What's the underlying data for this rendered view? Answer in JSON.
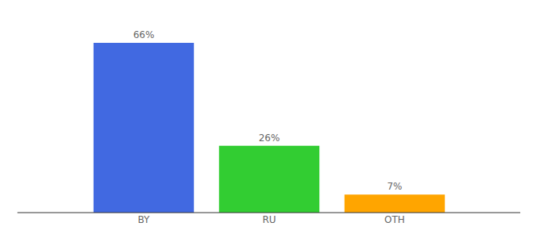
{
  "chart_data": {
    "type": "bar",
    "categories": [
      "BY",
      "RU",
      "OTH"
    ],
    "values": [
      66,
      26,
      7
    ],
    "value_labels": [
      "66%",
      "26%",
      "7%"
    ],
    "colors": [
      "#4169e1",
      "#32cd32",
      "#ffa500"
    ],
    "ylim": [
      0,
      66
    ],
    "data_labels": true,
    "tick_labels": "x",
    "grid": false
  }
}
